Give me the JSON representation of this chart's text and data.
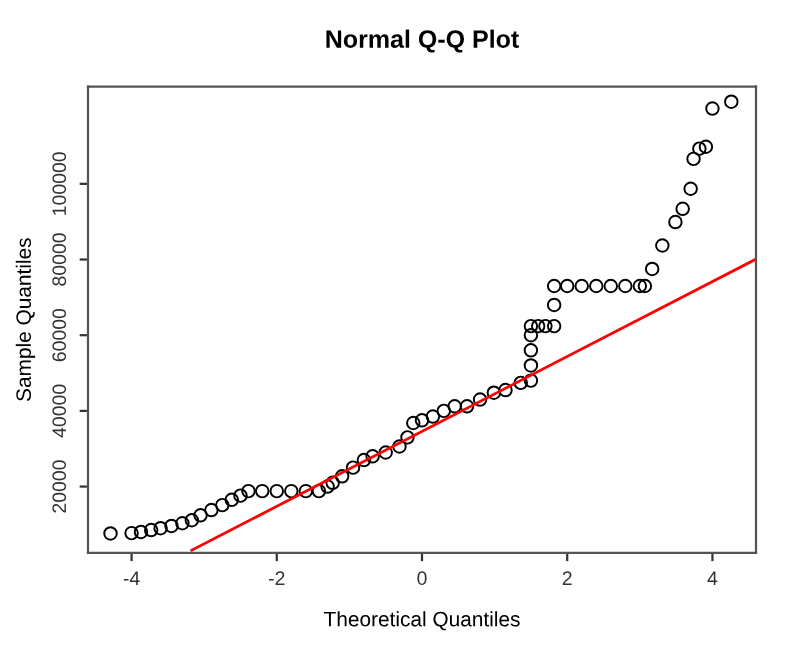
{
  "chart_data": {
    "type": "scatter",
    "title": "Normal Q-Q Plot",
    "xlabel": "Theoretical Quantiles",
    "ylabel": "Sample Quantiles",
    "xlim": [
      -4.6,
      4.6
    ],
    "xticks": [
      -4,
      -2,
      0,
      2,
      4
    ],
    "ylim": [
      2500,
      125700
    ],
    "yticks": [
      20000,
      40000,
      60000,
      80000,
      100000
    ],
    "grid": false,
    "series": [
      {
        "marker": "circle",
        "color": "#000000",
        "x": [
          -4.29,
          -4.0,
          -3.87,
          -3.73,
          -3.6,
          -3.45,
          -3.3,
          -3.17,
          -3.05,
          -2.9,
          -2.75,
          -2.62,
          -2.5,
          -2.39,
          -2.2,
          -2.0,
          -1.8,
          -1.6,
          -1.42,
          -1.3,
          -1.23,
          -1.1,
          -0.95,
          -0.8,
          -0.68,
          -0.5,
          -0.31,
          -0.2,
          -0.12,
          0.0,
          0.15,
          0.3,
          0.45,
          0.62,
          0.8,
          0.99,
          1.15,
          1.36,
          1.5,
          1.5,
          1.5,
          1.5,
          1.5,
          1.6,
          1.7,
          1.82,
          1.82,
          1.82,
          2.0,
          2.2,
          2.4,
          2.6,
          2.8,
          3.0,
          3.07,
          3.17,
          3.31,
          3.49,
          3.59,
          3.7,
          3.74,
          3.82,
          3.91,
          4.0,
          4.26
        ],
        "values": [
          7600,
          7700,
          8000,
          8500,
          9000,
          9600,
          10300,
          11100,
          12400,
          13800,
          15100,
          16500,
          17600,
          18800,
          18800,
          18800,
          18800,
          18800,
          18800,
          20000,
          21000,
          22700,
          25000,
          27000,
          28000,
          29000,
          30600,
          33000,
          36800,
          37500,
          38500,
          40000,
          41200,
          41200,
          43000,
          44800,
          45500,
          47400,
          48000,
          52000,
          56000,
          60000,
          62400,
          62400,
          62400,
          62400,
          68000,
          73000,
          73000,
          73000,
          73000,
          73000,
          73000,
          73000,
          73000,
          77500,
          83700,
          89900,
          93400,
          98700,
          106600,
          109300,
          109800,
          119900,
          121700
        ]
      },
      {
        "type": "line",
        "color": "#ff0000",
        "x": [
          -3.17,
          4.6
        ],
        "values": [
          3200,
          80100
        ]
      }
    ]
  }
}
